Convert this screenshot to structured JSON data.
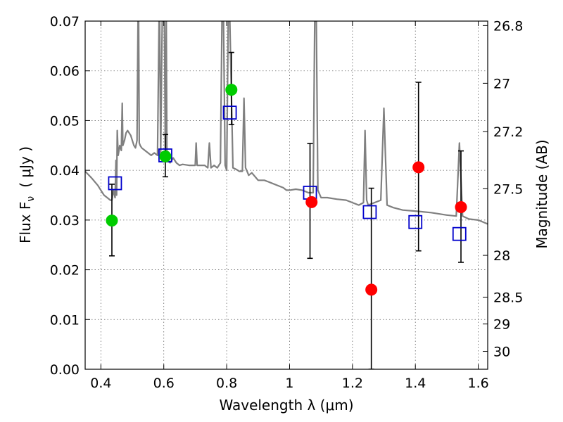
{
  "chart_data": {
    "type": "scatter",
    "title": "",
    "xlabel": "Wavelength  λ (μm)",
    "ylabel": "Flux  F",
    "ylabel_sub": "ν",
    "ylabel_unit": "( μJy )",
    "ylabel_right": "Magnitude (AB)",
    "xlim": [
      0.35,
      1.63
    ],
    "ylim": [
      0.0,
      0.07
    ],
    "grid": true,
    "x_ticks": [
      0.4,
      0.6,
      0.8,
      1.0,
      1.2,
      1.4,
      1.6
    ],
    "x_tick_labels": [
      "0.4",
      "0.6",
      "0.8",
      "1",
      "1.2",
      "1.4",
      "1.6"
    ],
    "y_ticks": [
      0.0,
      0.01,
      0.02,
      0.03,
      0.04,
      0.05,
      0.06,
      0.07
    ],
    "y_tick_labels": [
      "0.00",
      "0.01",
      "0.02",
      "0.03",
      "0.04",
      "0.05",
      "0.06",
      "0.07"
    ],
    "right_ticks": [
      {
        "label": "26.8",
        "flux": 0.0691
      },
      {
        "label": "27",
        "flux": 0.0575
      },
      {
        "label": "27.2",
        "flux": 0.0478
      },
      {
        "label": "27.5",
        "flux": 0.0363
      },
      {
        "label": "28",
        "flux": 0.0229
      },
      {
        "label": "28.5",
        "flux": 0.0145
      },
      {
        "label": "29",
        "flux": 0.0091
      },
      {
        "label": "30",
        "flux": 0.0036
      }
    ],
    "series": [
      {
        "name": "model spectrum",
        "kind": "line",
        "color": "#808080",
        "x": [
          0.35,
          0.37,
          0.39,
          0.4,
          0.41,
          0.42,
          0.43,
          0.435,
          0.44,
          0.445,
          0.448,
          0.45,
          0.452,
          0.455,
          0.46,
          0.465,
          0.468,
          0.47,
          0.475,
          0.48,
          0.485,
          0.49,
          0.495,
          0.5,
          0.505,
          0.51,
          0.515,
          0.518,
          0.52,
          0.522,
          0.525,
          0.53,
          0.54,
          0.55,
          0.56,
          0.57,
          0.58,
          0.585,
          0.587,
          0.59,
          0.595,
          0.597,
          0.6,
          0.602,
          0.605,
          0.608,
          0.61,
          0.62,
          0.63,
          0.64,
          0.65,
          0.66,
          0.68,
          0.7,
          0.703,
          0.706,
          0.71,
          0.73,
          0.74,
          0.745,
          0.75,
          0.76,
          0.77,
          0.78,
          0.785,
          0.79,
          0.795,
          0.8,
          0.805,
          0.81,
          0.82,
          0.83,
          0.84,
          0.85,
          0.855,
          0.86,
          0.865,
          0.87,
          0.88,
          0.9,
          0.92,
          0.94,
          0.96,
          0.98,
          0.99,
          1.0,
          1.02,
          1.04,
          1.06,
          1.075,
          1.08,
          1.085,
          1.09,
          1.1,
          1.12,
          1.15,
          1.18,
          1.2,
          1.22,
          1.235,
          1.24,
          1.245,
          1.25,
          1.27,
          1.29,
          1.3,
          1.31,
          1.33,
          1.36,
          1.4,
          1.45,
          1.5,
          1.53,
          1.54,
          1.55,
          1.57,
          1.6,
          1.63
        ],
        "y": [
          0.0398,
          0.0385,
          0.037,
          0.036,
          0.035,
          0.0345,
          0.034,
          0.034,
          0.036,
          0.0345,
          0.042,
          0.035,
          0.048,
          0.043,
          0.045,
          0.044,
          0.0535,
          0.045,
          0.046,
          0.0475,
          0.048,
          0.0475,
          0.047,
          0.046,
          0.045,
          0.0445,
          0.046,
          0.07,
          0.07,
          0.0455,
          0.045,
          0.0445,
          0.044,
          0.0435,
          0.043,
          0.0435,
          0.043,
          0.07,
          0.07,
          0.043,
          0.07,
          0.07,
          0.07,
          0.07,
          0.042,
          0.07,
          0.042,
          0.0415,
          0.0425,
          0.0415,
          0.041,
          0.0412,
          0.041,
          0.041,
          0.0455,
          0.041,
          0.041,
          0.041,
          0.0405,
          0.0455,
          0.0405,
          0.041,
          0.0405,
          0.0415,
          0.07,
          0.07,
          0.041,
          0.04,
          0.07,
          0.07,
          0.0405,
          0.0402,
          0.0398,
          0.0398,
          0.0545,
          0.0405,
          0.0398,
          0.039,
          0.0395,
          0.038,
          0.038,
          0.0375,
          0.037,
          0.0365,
          0.036,
          0.036,
          0.0362,
          0.036,
          0.0355,
          0.0355,
          0.07,
          0.07,
          0.036,
          0.0345,
          0.0345,
          0.0342,
          0.034,
          0.0335,
          0.033,
          0.0335,
          0.048,
          0.034,
          0.033,
          0.0335,
          0.034,
          0.0525,
          0.033,
          0.0325,
          0.032,
          0.0318,
          0.0315,
          0.031,
          0.0308,
          0.0455,
          0.0308,
          0.0302,
          0.03,
          0.0292
        ]
      },
      {
        "name": "observed (green)",
        "kind": "points",
        "color": "#00cc00",
        "x": [
          0.435,
          0.605,
          0.815
        ],
        "y": [
          0.0299,
          0.0428,
          0.0562
        ]
      },
      {
        "name": "observed (red)",
        "kind": "points",
        "color": "#ff0000",
        "x": [
          1.07,
          1.26,
          1.41,
          1.545
        ],
        "y": [
          0.0336,
          0.016,
          0.0406,
          0.0326
        ]
      },
      {
        "name": "model flux (blue squares)",
        "kind": "squares",
        "color": "#0000cc",
        "x": [
          0.445,
          0.605,
          0.81,
          1.065,
          1.255,
          1.4,
          1.54
        ],
        "y": [
          0.0374,
          0.043,
          0.0516,
          0.0355,
          0.0316,
          0.0296,
          0.0272
        ]
      },
      {
        "name": "error bars",
        "kind": "errorbars",
        "color": "#000000",
        "x": [
          0.435,
          0.605,
          0.815,
          1.065,
          1.26,
          1.41,
          1.545
        ],
        "low": [
          0.0228,
          0.0387,
          0.0492,
          0.0223,
          0.0,
          0.0238,
          0.0215
        ],
        "high": [
          0.0372,
          0.0472,
          0.0637,
          0.0454,
          0.0364,
          0.0577,
          0.0439
        ]
      }
    ]
  }
}
